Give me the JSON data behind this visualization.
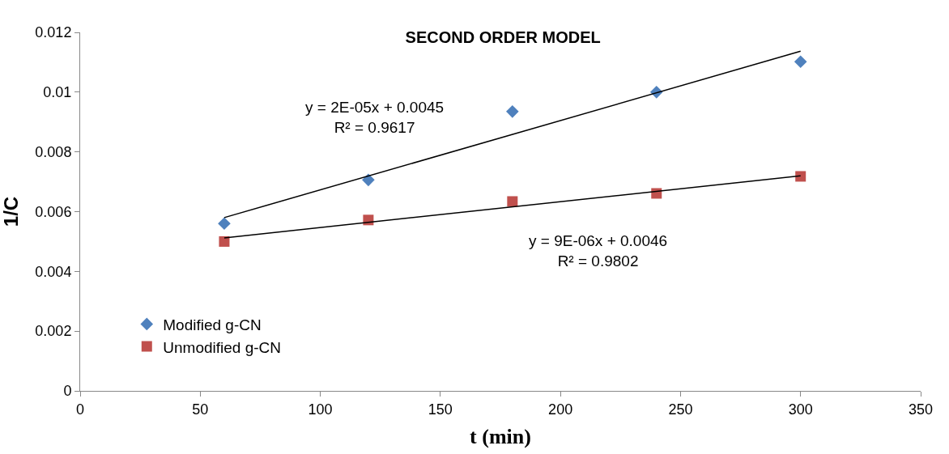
{
  "chart_data": {
    "type": "scatter",
    "title": "SECOND ORDER MODEL",
    "xlabel": "t (min)",
    "ylabel": "1/C",
    "xlim": [
      0,
      350
    ],
    "xticks": [
      0,
      50,
      100,
      150,
      200,
      250,
      300,
      350
    ],
    "ylim": [
      0,
      0.012
    ],
    "yticks": [
      0,
      0.002,
      0.004,
      0.006,
      0.008,
      0.01,
      0.012
    ],
    "legend": "bottom left",
    "series": [
      {
        "name": "Modified g-CN",
        "color": "#4f81bd",
        "marker": "diamond",
        "x": [
          60,
          120,
          180,
          240,
          300
        ],
        "values": [
          0.0056,
          0.00706,
          0.00935,
          0.01,
          0.01102
        ]
      },
      {
        "name": "Unmodified g-CN",
        "color": "#c0504d",
        "marker": "square",
        "x": [
          60,
          120,
          180,
          240,
          300
        ],
        "values": [
          0.005,
          0.00572,
          0.00634,
          0.00661,
          0.00718
        ]
      },
      {
        "type": "line",
        "color": "#000000",
        "marker": "none",
        "x": [
          60,
          300
        ],
        "values": [
          0.0058,
          0.01137
        ]
      },
      {
        "type": "line",
        "color": "#000000",
        "marker": "none",
        "x": [
          60,
          300
        ],
        "values": [
          0.00512,
          0.0072
        ]
      }
    ],
    "annotations": [
      "y = 2E-05x + 0.0045\nR² = 0.9617",
      "y = 9E-06x + 0.0046\nR² = 0.9802"
    ]
  }
}
